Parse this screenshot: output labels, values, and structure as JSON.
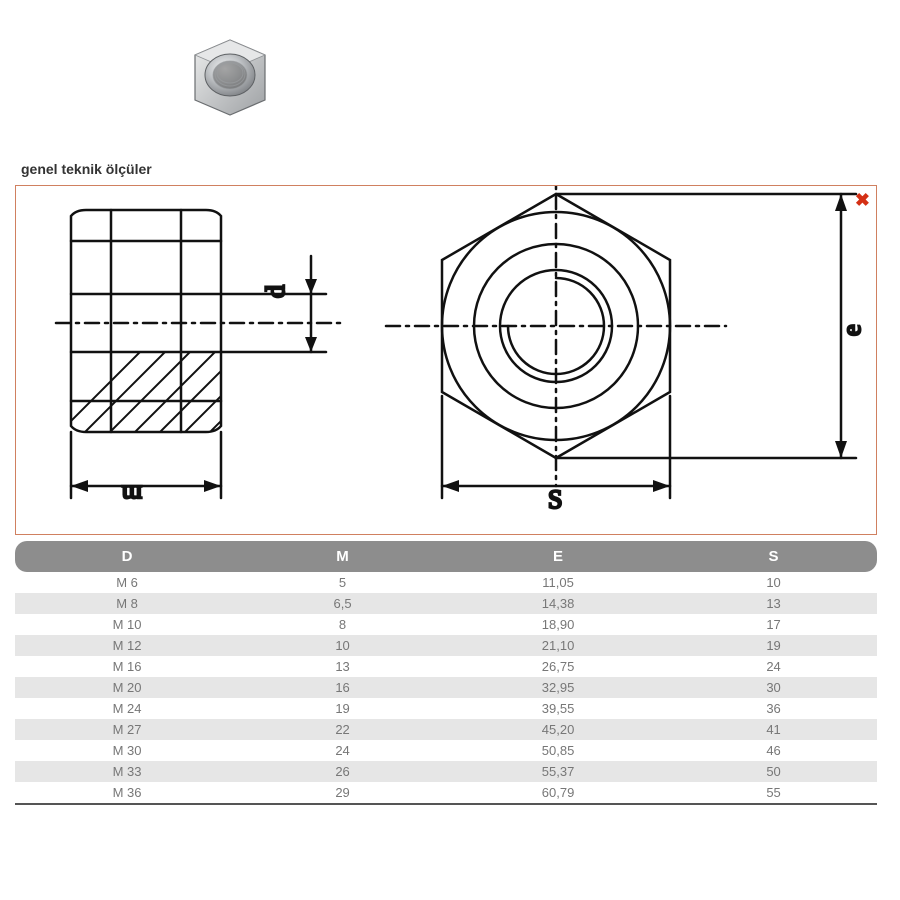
{
  "title": "genel teknik ölçüler",
  "close_icon": "✖",
  "diagram": {
    "border_color": "#d08060",
    "close_color": "#d43015",
    "stroke": "#111111",
    "stroke_width": 2.5,
    "hatch_color": "#111111",
    "labels": {
      "m": "m",
      "d": "d",
      "s": "S",
      "e": "e"
    },
    "label_fontsize": 26
  },
  "photo": {
    "metal_light": "#e8e9ea",
    "metal_mid": "#b9bcbf",
    "metal_dark": "#7d8084",
    "thread": "#9a9da0"
  },
  "table": {
    "header_bg": "#8d8d8d",
    "header_fg": "#ffffff",
    "row_alt_bg": "#e6e6e6",
    "cell_fg": "#777777",
    "bottom_border": "#555555",
    "columns": [
      "D",
      "M",
      "E",
      "S"
    ],
    "rows": [
      [
        "M 6",
        "5",
        "11,05",
        "10"
      ],
      [
        "M 8",
        "6,5",
        "14,38",
        "13"
      ],
      [
        "M 10",
        "8",
        "18,90",
        "17"
      ],
      [
        "M 12",
        "10",
        "21,10",
        "19"
      ],
      [
        "M 16",
        "13",
        "26,75",
        "24"
      ],
      [
        "M 20",
        "16",
        "32,95",
        "30"
      ],
      [
        "M 24",
        "19",
        "39,55",
        "36"
      ],
      [
        "M 27",
        "22",
        "45,20",
        "41"
      ],
      [
        "M 30",
        "24",
        "50,85",
        "46"
      ],
      [
        "M 33",
        "26",
        "55,37",
        "50"
      ],
      [
        "M 36",
        "29",
        "60,79",
        "55"
      ]
    ]
  }
}
